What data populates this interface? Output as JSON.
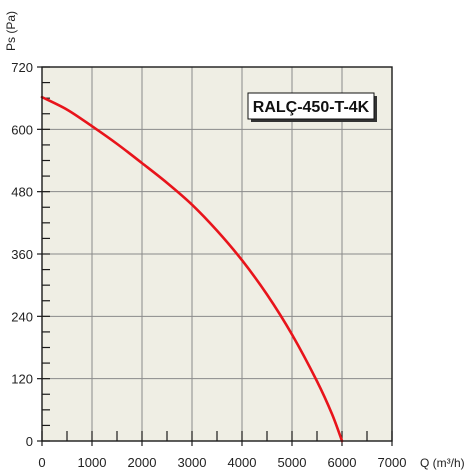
{
  "chart_data": {
    "type": "line",
    "xlabel": "Q (m³/h)",
    "ylabel": "Ps (Pa)",
    "xlim": [
      0,
      7000
    ],
    "ylim": [
      0,
      720
    ],
    "x_ticks": [
      0,
      1000,
      2000,
      3000,
      4000,
      5000,
      6000,
      7000
    ],
    "y_ticks": [
      0,
      120,
      240,
      360,
      480,
      600,
      720
    ],
    "x_tick_labels": [
      "0",
      "1000",
      "2000",
      "3000",
      "4000",
      "5000",
      "6000",
      "7000"
    ],
    "y_tick_labels": [
      "0",
      "120",
      "240",
      "360",
      "480",
      "600",
      "720"
    ],
    "grid": true,
    "annotation": "RALÇ-450-T-4K",
    "series": [
      {
        "color": "#e8141b",
        "x": [
          0,
          500,
          1000,
          1500,
          2000,
          2500,
          3000,
          3500,
          4000,
          4500,
          5000,
          5500,
          5800,
          6000
        ],
        "y": [
          662,
          638,
          606,
          572,
          535,
          497,
          455,
          405,
          348,
          282,
          205,
          115,
          52,
          0
        ]
      }
    ]
  },
  "colors": {
    "plot_background": "#efeee4",
    "grid": "#8a8a8a",
    "axis": "#1a1a1a",
    "curve": "#e8141b"
  }
}
